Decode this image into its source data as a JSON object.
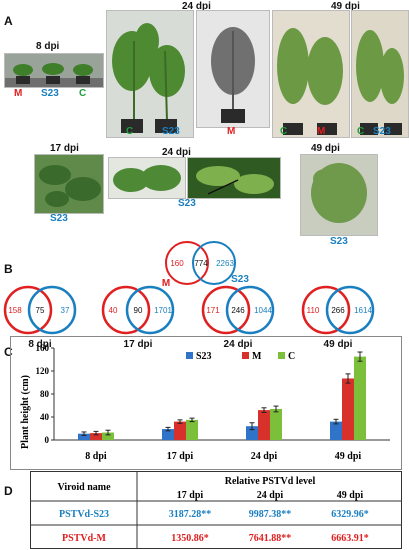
{
  "panels": {
    "a": "A",
    "b": "B",
    "c": "C",
    "d": "D"
  },
  "panel_a": {
    "dpi_8": "8 dpi",
    "dpi_24_top": "24 dpi",
    "dpi_49_top": "49 dpi",
    "dpi_17": "17 dpi",
    "dpi_24_bottom": "24 dpi",
    "dpi_49_bottom": "49 dpi",
    "lab_m": "M",
    "lab_s23": "S23",
    "lab_c": "C"
  },
  "panel_b": {
    "top": {
      "m": "160",
      "shared": "774",
      "s23": "2263",
      "m_label": "M",
      "s23_label": "S23"
    },
    "venns": [
      {
        "m": "158",
        "shared": "75",
        "s23": "37",
        "label": "8 dpi"
      },
      {
        "m": "40",
        "shared": "90",
        "s23": "1701",
        "label": "17 dpi"
      },
      {
        "m": "171",
        "shared": "246",
        "s23": "1044",
        "label": "24 dpi"
      },
      {
        "m": "110",
        "shared": "266",
        "s23": "1614",
        "label": "49 dpi"
      }
    ]
  },
  "colors": {
    "s23": "#2f74c8",
    "m": "#d8302a",
    "c": "#7cbf3a"
  },
  "chart_data": {
    "type": "bar",
    "ylabel": "Plant height (cm)",
    "ylim": [
      0,
      160
    ],
    "yticks": [
      "0",
      "40",
      "80",
      "120",
      "160"
    ],
    "categories": [
      "8 dpi",
      "17 dpi",
      "24 dpi",
      "49 dpi"
    ],
    "series": [
      {
        "name": "S23",
        "values": [
          11,
          19,
          24,
          32
        ],
        "errors": [
          3,
          3,
          6,
          4
        ]
      },
      {
        "name": "M",
        "values": [
          12,
          32,
          52,
          107
        ],
        "errors": [
          3,
          3,
          4,
          8
        ]
      },
      {
        "name": "C",
        "values": [
          13,
          35,
          54,
          145
        ],
        "errors": [
          4,
          3,
          5,
          8
        ]
      }
    ],
    "legend": "top-center"
  },
  "panel_d": {
    "col_viroid": "Viroid name",
    "col_level": "Relative PSTVd level",
    "days": [
      "17 dpi",
      "24 dpi",
      "49 dpi"
    ],
    "rows": [
      {
        "name": "PSTVd-S23",
        "values": [
          "3187.28**",
          "9987.38**",
          "6329.96*"
        ]
      },
      {
        "name": "PSTVd-M",
        "values": [
          "1350.86*",
          "7641.88**",
          "6663.91*"
        ]
      }
    ]
  }
}
